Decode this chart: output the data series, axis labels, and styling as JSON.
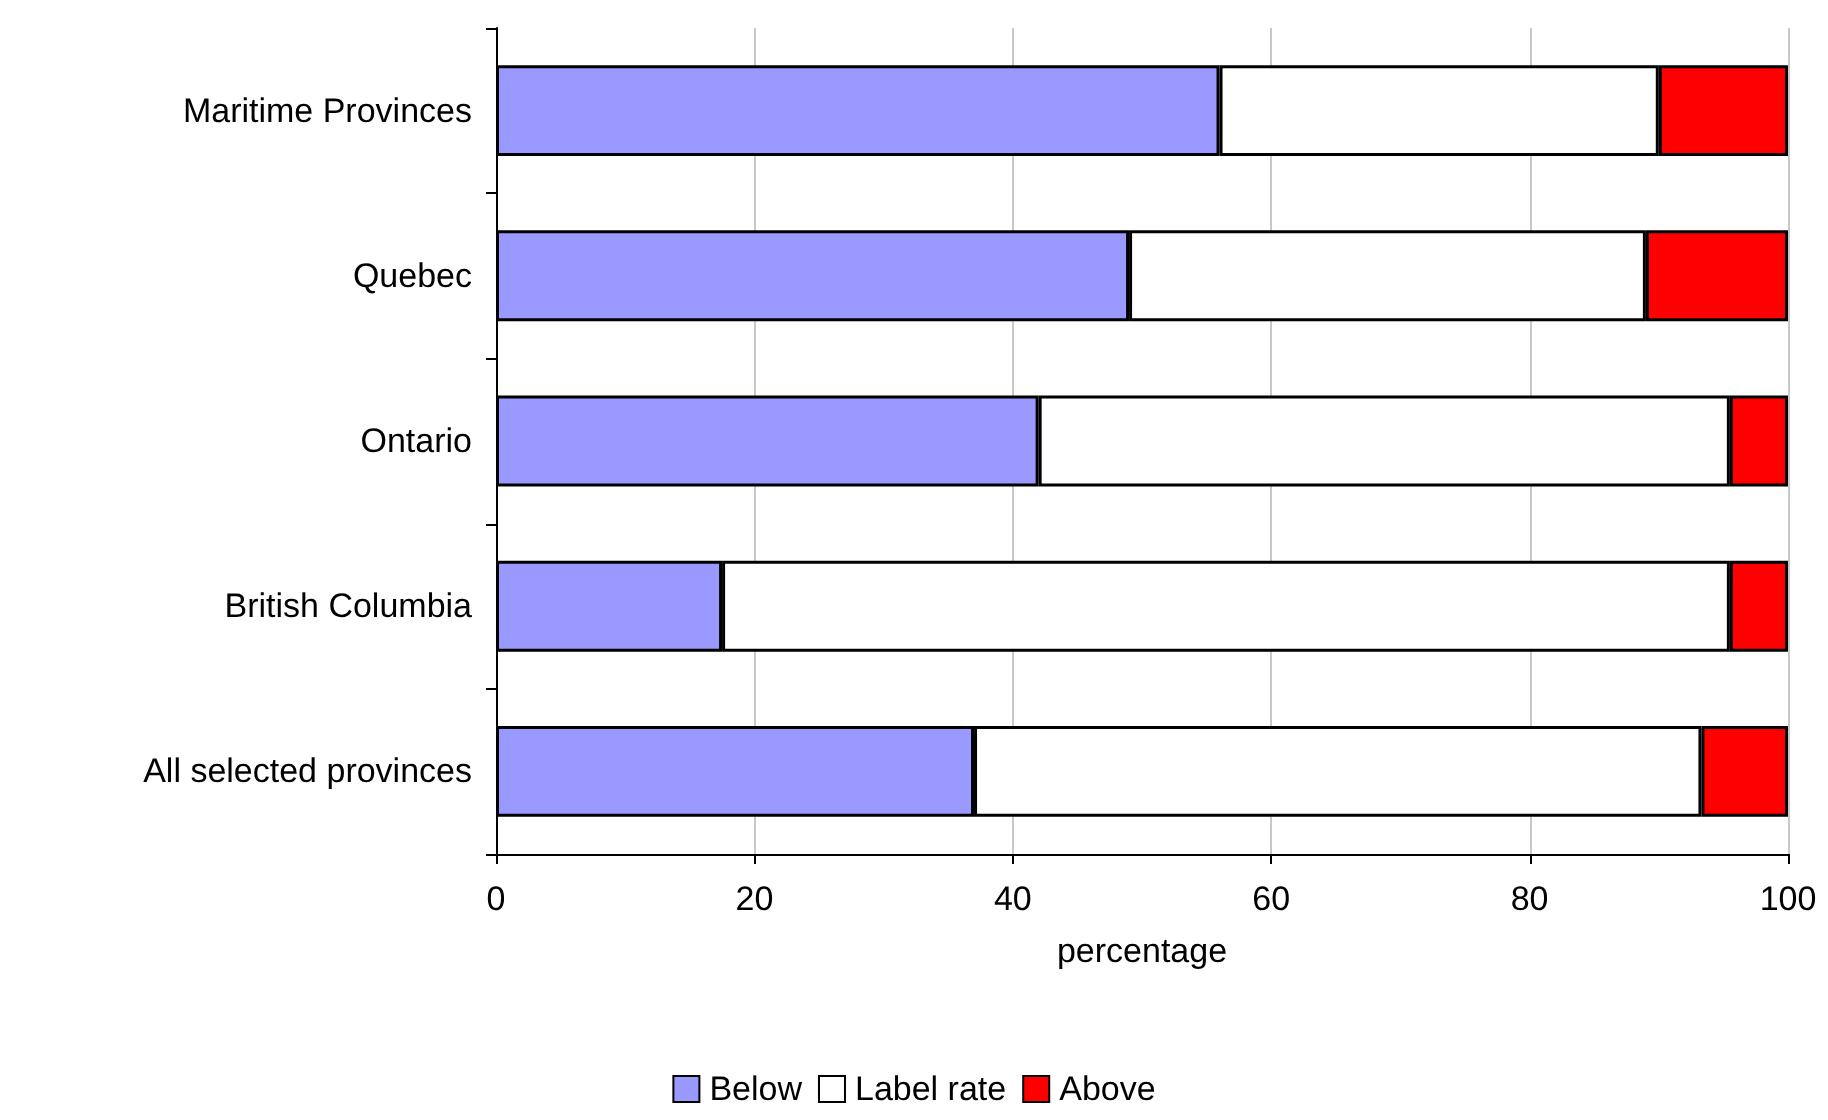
{
  "chart_data": {
    "type": "bar",
    "orientation": "horizontal",
    "stacked": true,
    "categories": [
      "Maritime Provinces",
      "Quebec",
      "Ontario",
      "British Columbia",
      "All selected provinces"
    ],
    "series": [
      {
        "name": "Below",
        "color": "#9999ff",
        "values": [
          56,
          49,
          42,
          17.5,
          37
        ]
      },
      {
        "name": "Label rate",
        "color": "#ffffff",
        "values": [
          34,
          40,
          53.5,
          78,
          56.3
        ]
      },
      {
        "name": "Above",
        "color": "#ff0000",
        "values": [
          10,
          11,
          4.5,
          4.5,
          6.7
        ]
      }
    ],
    "xlabel": "percentage",
    "xlim": [
      0,
      100
    ],
    "xticks": [
      0,
      20,
      40,
      60,
      80,
      100
    ],
    "grid": "x",
    "legend": "bottom"
  }
}
